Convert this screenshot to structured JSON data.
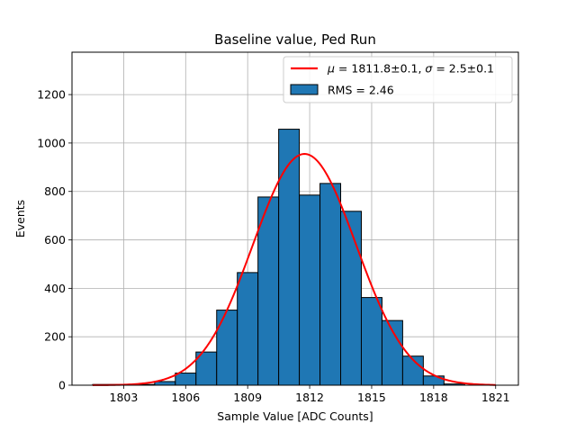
{
  "chart_data": {
    "type": "bar",
    "title": "Baseline value, Ped Run",
    "xlabel": "Sample Value [ADC Counts]",
    "ylabel": "Events",
    "xlim": [
      1800.5,
      1822.1
    ],
    "ylim": [
      0,
      1375
    ],
    "grid": true,
    "legend_position": "top-right",
    "x_ticks": [
      1803,
      1806,
      1809,
      1812,
      1815,
      1818,
      1821
    ],
    "x_tick_labels": [
      "1803",
      "1806",
      "1809",
      "1812",
      "1815",
      "1818",
      "1821"
    ],
    "y_ticks": [
      0,
      200,
      400,
      600,
      800,
      1000,
      1200
    ],
    "y_tick_labels": [
      "0",
      "200",
      "400",
      "600",
      "800",
      "1000",
      "1200"
    ],
    "histogram": {
      "name": "RMS = 2.46",
      "bin_edges": [
        1801.5,
        1804.5,
        1805.5,
        1806.5,
        1807.5,
        1808.5,
        1809.5,
        1810.5,
        1811.5,
        1812.5,
        1813.5,
        1814.5,
        1815.5,
        1816.5,
        1817.5,
        1818.5,
        1819.5
      ],
      "counts": [
        3,
        15,
        50,
        137,
        310,
        465,
        777,
        1057,
        785,
        833,
        718,
        362,
        267,
        120,
        38,
        5
      ],
      "color": "#1f77b4",
      "edgecolor": "#000000"
    },
    "fit": {
      "name": "$\\mu = 1811.8\\pm0.1$, $\\sigma = 2.5\\pm0.1$",
      "legend_mu": "μ",
      "legend_mu_value": " = 1811.8±0.1, ",
      "legend_sigma": "σ",
      "legend_sigma_value": " = 2.5±0.1",
      "mu": 1811.75,
      "sigma": 2.5,
      "amplitude": 955,
      "x_range": [
        1801.5,
        1821.0
      ],
      "color": "#ff0000"
    },
    "legend_hist_label": "RMS = 2.46"
  }
}
